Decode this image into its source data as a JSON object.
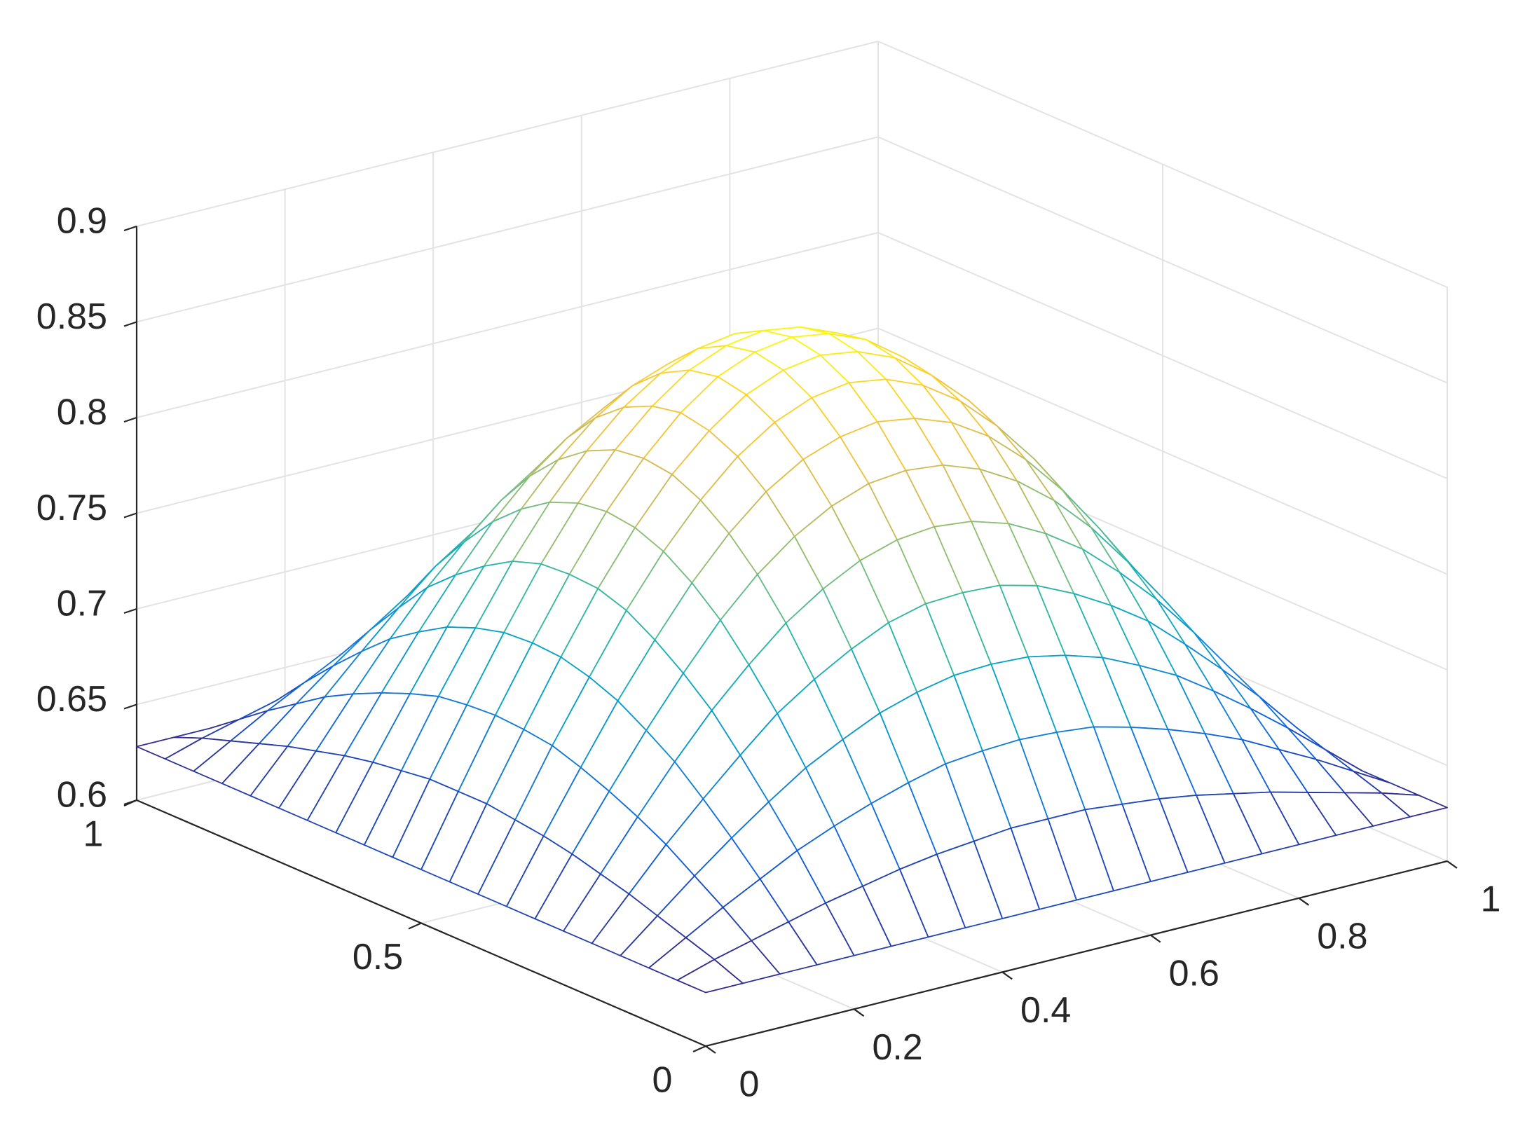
{
  "chart_data": {
    "type": "mesh",
    "x": [
      0,
      0.05,
      0.1,
      0.15,
      0.2,
      0.25,
      0.3,
      0.35,
      0.4,
      0.45,
      0.5,
      0.55,
      0.6,
      0.65,
      0.7,
      0.75,
      0.8,
      0.85,
      0.9,
      0.95,
      1
    ],
    "y": [
      0,
      0.05,
      0.1,
      0.15,
      0.2,
      0.25,
      0.3,
      0.35,
      0.4,
      0.45,
      0.5,
      0.55,
      0.6,
      0.65,
      0.7,
      0.75,
      0.8,
      0.85,
      0.9,
      0.95,
      1
    ],
    "z": [
      [
        0.628,
        0.628,
        0.628,
        0.628,
        0.628,
        0.628,
        0.628,
        0.628,
        0.628,
        0.628,
        0.628,
        0.628,
        0.628,
        0.628,
        0.628,
        0.628,
        0.628,
        0.628,
        0.628,
        0.628,
        0.628
      ],
      [
        0.628,
        0.634,
        0.639,
        0.644,
        0.649,
        0.653,
        0.657,
        0.66,
        0.662,
        0.664,
        0.664,
        0.664,
        0.662,
        0.66,
        0.657,
        0.653,
        0.649,
        0.644,
        0.639,
        0.634,
        0.628
      ],
      [
        0.628,
        0.639,
        0.65,
        0.66,
        0.67,
        0.678,
        0.685,
        0.691,
        0.696,
        0.698,
        0.699,
        0.698,
        0.696,
        0.691,
        0.685,
        0.678,
        0.67,
        0.66,
        0.65,
        0.639,
        0.628
      ],
      [
        0.628,
        0.644,
        0.66,
        0.675,
        0.689,
        0.702,
        0.712,
        0.721,
        0.727,
        0.731,
        0.732,
        0.731,
        0.727,
        0.721,
        0.712,
        0.702,
        0.689,
        0.675,
        0.66,
        0.644,
        0.628
      ],
      [
        0.628,
        0.649,
        0.67,
        0.689,
        0.707,
        0.724,
        0.737,
        0.748,
        0.757,
        0.762,
        0.763,
        0.762,
        0.757,
        0.748,
        0.737,
        0.724,
        0.707,
        0.689,
        0.67,
        0.649,
        0.628
      ],
      [
        0.628,
        0.653,
        0.678,
        0.702,
        0.724,
        0.743,
        0.76,
        0.773,
        0.783,
        0.789,
        0.791,
        0.789,
        0.783,
        0.773,
        0.76,
        0.743,
        0.724,
        0.702,
        0.678,
        0.653,
        0.628
      ],
      [
        0.628,
        0.657,
        0.685,
        0.712,
        0.737,
        0.76,
        0.779,
        0.794,
        0.805,
        0.812,
        0.814,
        0.812,
        0.805,
        0.794,
        0.779,
        0.76,
        0.737,
        0.712,
        0.685,
        0.657,
        0.628
      ],
      [
        0.628,
        0.66,
        0.691,
        0.721,
        0.748,
        0.773,
        0.794,
        0.811,
        0.823,
        0.83,
        0.833,
        0.83,
        0.823,
        0.811,
        0.794,
        0.773,
        0.748,
        0.721,
        0.691,
        0.66,
        0.628
      ],
      [
        0.628,
        0.662,
        0.696,
        0.727,
        0.757,
        0.783,
        0.805,
        0.823,
        0.836,
        0.844,
        0.847,
        0.844,
        0.836,
        0.823,
        0.805,
        0.783,
        0.757,
        0.727,
        0.696,
        0.662,
        0.628
      ],
      [
        0.628,
        0.664,
        0.698,
        0.731,
        0.762,
        0.789,
        0.812,
        0.83,
        0.844,
        0.852,
        0.855,
        0.852,
        0.844,
        0.83,
        0.812,
        0.789,
        0.762,
        0.731,
        0.698,
        0.664,
        0.628
      ],
      [
        0.628,
        0.664,
        0.699,
        0.732,
        0.763,
        0.791,
        0.814,
        0.833,
        0.847,
        0.855,
        0.858,
        0.855,
        0.847,
        0.833,
        0.814,
        0.791,
        0.763,
        0.732,
        0.699,
        0.664,
        0.628
      ],
      [
        0.628,
        0.664,
        0.698,
        0.731,
        0.762,
        0.789,
        0.812,
        0.83,
        0.844,
        0.852,
        0.855,
        0.852,
        0.844,
        0.83,
        0.812,
        0.789,
        0.762,
        0.731,
        0.698,
        0.664,
        0.628
      ],
      [
        0.628,
        0.662,
        0.696,
        0.727,
        0.757,
        0.783,
        0.805,
        0.823,
        0.836,
        0.844,
        0.847,
        0.844,
        0.836,
        0.823,
        0.805,
        0.783,
        0.757,
        0.727,
        0.696,
        0.662,
        0.628
      ],
      [
        0.628,
        0.66,
        0.691,
        0.721,
        0.748,
        0.773,
        0.794,
        0.811,
        0.823,
        0.83,
        0.833,
        0.83,
        0.823,
        0.811,
        0.794,
        0.773,
        0.748,
        0.721,
        0.691,
        0.66,
        0.628
      ],
      [
        0.628,
        0.657,
        0.685,
        0.712,
        0.737,
        0.76,
        0.779,
        0.794,
        0.805,
        0.812,
        0.814,
        0.812,
        0.805,
        0.794,
        0.779,
        0.76,
        0.737,
        0.712,
        0.685,
        0.657,
        0.628
      ],
      [
        0.628,
        0.653,
        0.678,
        0.702,
        0.724,
        0.743,
        0.76,
        0.773,
        0.783,
        0.789,
        0.791,
        0.789,
        0.783,
        0.773,
        0.76,
        0.743,
        0.724,
        0.702,
        0.678,
        0.653,
        0.628
      ],
      [
        0.628,
        0.649,
        0.67,
        0.689,
        0.707,
        0.724,
        0.737,
        0.748,
        0.757,
        0.762,
        0.763,
        0.762,
        0.757,
        0.748,
        0.737,
        0.724,
        0.707,
        0.689,
        0.67,
        0.649,
        0.628
      ],
      [
        0.628,
        0.644,
        0.66,
        0.675,
        0.689,
        0.702,
        0.712,
        0.721,
        0.727,
        0.731,
        0.732,
        0.731,
        0.727,
        0.721,
        0.712,
        0.702,
        0.689,
        0.675,
        0.66,
        0.644,
        0.628
      ],
      [
        0.628,
        0.639,
        0.65,
        0.66,
        0.67,
        0.678,
        0.685,
        0.691,
        0.696,
        0.698,
        0.699,
        0.698,
        0.696,
        0.691,
        0.685,
        0.678,
        0.67,
        0.66,
        0.65,
        0.639,
        0.628
      ],
      [
        0.628,
        0.634,
        0.639,
        0.644,
        0.649,
        0.653,
        0.657,
        0.66,
        0.662,
        0.664,
        0.664,
        0.664,
        0.662,
        0.66,
        0.657,
        0.653,
        0.649,
        0.644,
        0.639,
        0.634,
        0.628
      ],
      [
        0.628,
        0.628,
        0.628,
        0.628,
        0.628,
        0.628,
        0.628,
        0.628,
        0.628,
        0.628,
        0.628,
        0.628,
        0.628,
        0.628,
        0.628,
        0.628,
        0.628,
        0.628,
        0.628,
        0.628,
        0.628
      ]
    ],
    "xlim": [
      0,
      1
    ],
    "xticks": [
      0,
      0.2,
      0.4,
      0.6,
      0.8,
      1
    ],
    "ylim": [
      0,
      1
    ],
    "yticks": [
      0,
      0.5,
      1
    ],
    "zlim": [
      0.6,
      0.9
    ],
    "zticks": [
      0.6,
      0.65,
      0.7,
      0.75,
      0.8,
      0.85,
      0.9
    ],
    "grid": true,
    "colormap": "parula"
  }
}
